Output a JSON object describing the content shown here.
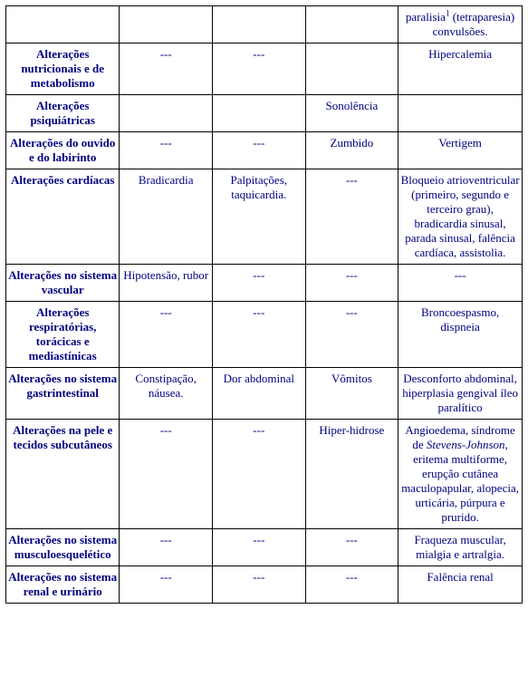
{
  "colors": {
    "text": "#000080",
    "border": "#000000",
    "background": "#ffffff"
  },
  "font": {
    "family": "Times New Roman",
    "size_pt": 13,
    "header_weight": "bold"
  },
  "table": {
    "column_widths_pct": [
      22,
      18,
      18,
      18,
      24
    ],
    "rows": [
      {
        "label": "",
        "cells": [
          "",
          "",
          "",
          "paralisia¹ (tetraparesia) convulsões."
        ]
      },
      {
        "label": "Alterações nutricionais e de metabolismo",
        "cells": [
          "---",
          "---",
          "",
          "Hipercalemia"
        ]
      },
      {
        "label": "Alterações psiquiátricas",
        "cells": [
          "",
          "",
          "Sonolência",
          ""
        ]
      },
      {
        "label": "Alterações do ouvido e do labirinto",
        "cells": [
          "---",
          "---",
          "Zumbido",
          "Vertigem"
        ]
      },
      {
        "label": "Alterações cardíacas",
        "cells": [
          "Bradicardia",
          "Palpitações, taquicardia.",
          "---",
          "Bloqueio atrioventricular (primeiro, segundo e terceiro grau), bradicardia sinusal, parada sinusal, falência cardíaca, assistolia."
        ]
      },
      {
        "label": "Alterações no sistema vascular",
        "cells": [
          "Hipotensão, rubor",
          "---",
          "---",
          "---"
        ]
      },
      {
        "label": "Alterações respiratórias, torácicas e mediastínicas",
        "cells": [
          "---",
          "---",
          "---",
          "Broncoespasmo, dispneia"
        ]
      },
      {
        "label": "Alterações no sistema gastrintestinal",
        "cells": [
          "Constipação, náusea.",
          "Dor abdominal",
          "Vômitos",
          "Desconforto abdominal, hiperplasia gengival íleo paralítico"
        ]
      },
      {
        "label": "Alterações na pele e tecidos subcutâneos",
        "cells": [
          "---",
          "---",
          "Hiper-hidrose",
          "Angioedema, síndrome de <i>Stevens-Johnson</i>, eritema multiforme, erupção cutânea maculopapular, alopecia, urticária, púrpura e prurido."
        ]
      },
      {
        "label": "Alterações no sistema musculoesquelético",
        "cells": [
          "---",
          "---",
          "---",
          "Fraqueza muscular, mialgia e artralgia."
        ]
      },
      {
        "label": "Alterações no sistema renal e urinário",
        "cells": [
          "---",
          "---",
          "---",
          "Falência renal"
        ]
      }
    ]
  }
}
